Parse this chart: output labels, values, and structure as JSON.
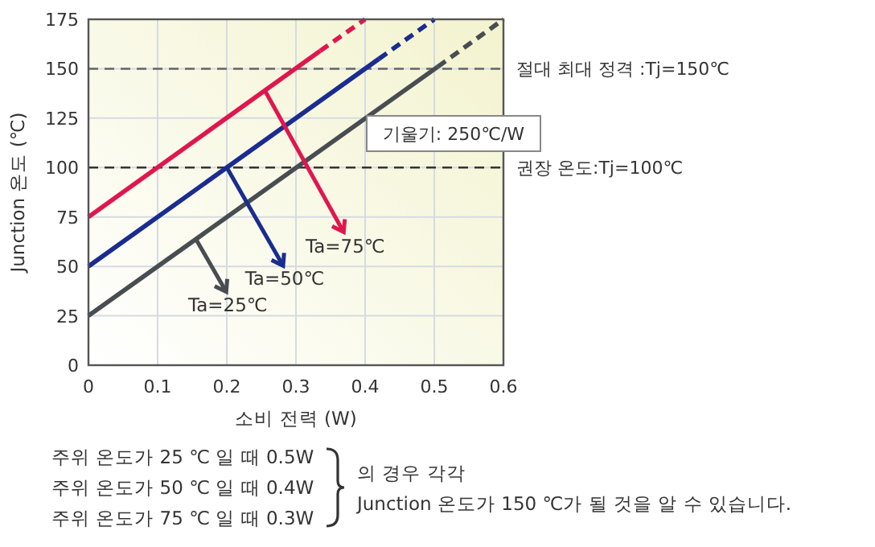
{
  "chart_data": {
    "type": "line",
    "xlabel": "소비 전력 (W)",
    "ylabel": "Junction 온도 (℃)",
    "xlim": [
      0,
      0.6
    ],
    "ylim": [
      0,
      175
    ],
    "xticks": [
      0,
      0.1,
      0.2,
      0.3,
      0.4,
      0.5,
      0.6
    ],
    "yticks": [
      0,
      25,
      50,
      75,
      100,
      125,
      150,
      175
    ],
    "grid": true,
    "series": [
      {
        "x": [
          0,
          0.505
        ],
        "values": [
          25,
          151
        ],
        "color": "#474d51",
        "line_style": "solid"
      },
      {
        "x": [
          0.505,
          0.6
        ],
        "values": [
          151,
          175
        ],
        "color": "#474d51",
        "line_style": "dashed"
      },
      {
        "x": [
          0,
          0.42
        ],
        "values": [
          50,
          155
        ],
        "color": "#1a2c8f",
        "line_style": "solid"
      },
      {
        "x": [
          0.42,
          0.5
        ],
        "values": [
          155,
          175
        ],
        "color": "#1a2c8f",
        "line_style": "dashed"
      },
      {
        "x": [
          0,
          0.335
        ],
        "values": [
          75,
          159
        ],
        "color": "#e0164f",
        "line_style": "solid"
      },
      {
        "x": [
          0.335,
          0.4
        ],
        "values": [
          159,
          175
        ],
        "color": "#e0164f",
        "line_style": "dashed"
      }
    ],
    "ref_lines": [
      {
        "axis": "y",
        "value": 150,
        "label": "절대 최대 정격 :Tj=150℃",
        "line_style": "dashed",
        "color": "#666666"
      },
      {
        "axis": "y",
        "value": 100,
        "label": "권장 온도:Tj=100℃",
        "line_style": "dashed",
        "color": "#333333"
      }
    ],
    "annotations": [
      {
        "text": "Ta=25℃",
        "x": 0.155,
        "y": 64
      },
      {
        "text": "Ta=50℃",
        "x": 0.2,
        "y": 100
      },
      {
        "text": "Ta=75℃",
        "x": 0.255,
        "y": 139
      },
      "기울기: 250℃/W",
      "주위 온도가 25 ℃ 일 때 0.5W",
      "주위 온도가 50 ℃ 일 때 0.4W",
      "주위 온도가 75 ℃ 일 때 0.3W",
      "의 경우 각각",
      "Junction 온도가 150 ℃가 될 것을 알 수 있습니다."
    ]
  }
}
